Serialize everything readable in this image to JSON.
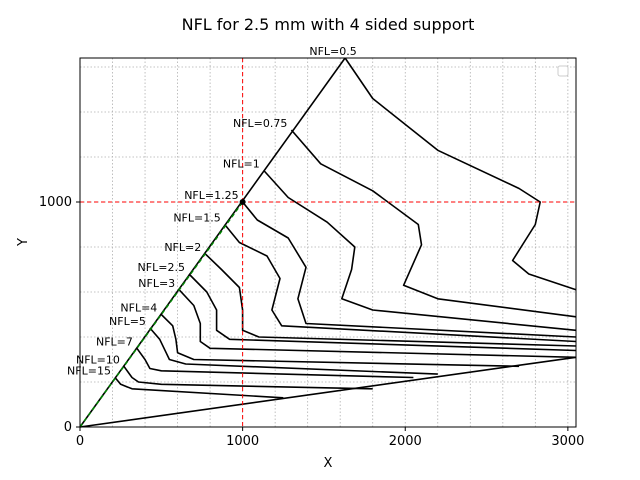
{
  "chart_data": {
    "type": "line",
    "title": "NFL for 2.5 mm with 4 sided support",
    "xlabel": "X",
    "ylabel": "Y",
    "xlim": [
      0,
      3050
    ],
    "ylim": [
      0,
      1640
    ],
    "xticks": [
      0,
      1000,
      2000,
      3000
    ],
    "yticks": [
      0,
      1000
    ],
    "xtick_labels": [
      "0",
      "1000",
      "2000",
      "3000"
    ],
    "ytick_labels": [
      "0",
      "1000"
    ],
    "grid": true,
    "legend": "top-right (empty)",
    "reference_point": [
      1000,
      1000
    ],
    "series": [
      {
        "label": "NFL=0.5",
        "values": [
          [
            1630,
            1640
          ],
          [
            1800,
            1460
          ],
          [
            2200,
            1230
          ],
          [
            2700,
            1060
          ],
          [
            2830,
            1000
          ],
          [
            2800,
            900
          ],
          [
            2660,
            740
          ],
          [
            2760,
            680
          ],
          [
            3050,
            610
          ]
        ]
      },
      {
        "label": "NFL=0.75",
        "values": [
          [
            1300,
            1320
          ],
          [
            1480,
            1170
          ],
          [
            1800,
            1050
          ],
          [
            2080,
            900
          ],
          [
            2100,
            810
          ],
          [
            1990,
            630
          ],
          [
            2200,
            570
          ],
          [
            3050,
            490
          ]
        ]
      },
      {
        "label": "NFL=1",
        "values": [
          [
            1130,
            1140
          ],
          [
            1280,
            1020
          ],
          [
            1520,
            910
          ],
          [
            1690,
            800
          ],
          [
            1670,
            700
          ],
          [
            1610,
            570
          ],
          [
            1800,
            520
          ],
          [
            3050,
            430
          ]
        ]
      },
      {
        "label": "NFL=1.25",
        "values": [
          [
            1000,
            1000
          ],
          [
            1090,
            920
          ],
          [
            1280,
            840
          ],
          [
            1390,
            710
          ],
          [
            1340,
            570
          ],
          [
            1390,
            460
          ],
          [
            3050,
            400
          ]
        ]
      },
      {
        "label": "NFL=1.5",
        "values": [
          [
            890,
            900
          ],
          [
            980,
            820
          ],
          [
            1150,
            760
          ],
          [
            1230,
            660
          ],
          [
            1180,
            520
          ],
          [
            1240,
            450
          ],
          [
            3050,
            380
          ]
        ]
      },
      {
        "label": "NFL=2",
        "values": [
          [
            770,
            770
          ],
          [
            870,
            700
          ],
          [
            980,
            620
          ],
          [
            1000,
            520
          ],
          [
            1000,
            430
          ],
          [
            1100,
            400
          ],
          [
            3050,
            360
          ]
        ]
      },
      {
        "label": "NFL=2.5",
        "values": [
          [
            670,
            680
          ],
          [
            780,
            600
          ],
          [
            840,
            520
          ],
          [
            840,
            430
          ],
          [
            920,
            390
          ],
          [
            3050,
            340
          ]
        ]
      },
      {
        "label": "NFL=3",
        "values": [
          [
            610,
            610
          ],
          [
            700,
            540
          ],
          [
            740,
            460
          ],
          [
            740,
            380
          ],
          [
            800,
            350
          ],
          [
            3050,
            310
          ]
        ]
      },
      {
        "label": "NFL=4",
        "values": [
          [
            500,
            500
          ],
          [
            570,
            450
          ],
          [
            590,
            390
          ],
          [
            600,
            330
          ],
          [
            700,
            300
          ],
          [
            2700,
            270
          ]
        ]
      },
      {
        "label": "NFL=5",
        "values": [
          [
            430,
            440
          ],
          [
            490,
            390
          ],
          [
            530,
            330
          ],
          [
            550,
            300
          ],
          [
            650,
            280
          ],
          [
            2200,
            235
          ]
        ]
      },
      {
        "label": "NFL=7",
        "values": [
          [
            350,
            350
          ],
          [
            400,
            300
          ],
          [
            430,
            260
          ],
          [
            500,
            250
          ],
          [
            2050,
            220
          ]
        ]
      },
      {
        "label": "NFL=10",
        "values": [
          [
            270,
            270
          ],
          [
            320,
            220
          ],
          [
            360,
            200
          ],
          [
            500,
            190
          ],
          [
            1800,
            170
          ]
        ]
      },
      {
        "label": "NFL=15",
        "values": [
          [
            215,
            220
          ],
          [
            250,
            190
          ],
          [
            320,
            170
          ],
          [
            1250,
            130
          ]
        ]
      },
      {
        "label": "",
        "values": [
          [
            0,
            0
          ],
          [
            1630,
            1640
          ]
        ]
      },
      {
        "label": "",
        "values": [
          [
            0,
            0
          ],
          [
            3050,
            310
          ]
        ]
      }
    ],
    "dashed_reference": {
      "x": 1000,
      "y": 1000,
      "color": "#ff0000"
    },
    "diagonal_highlight": {
      "from": [
        0,
        0
      ],
      "to": [
        1000,
        1000
      ],
      "color": "#008000"
    }
  }
}
